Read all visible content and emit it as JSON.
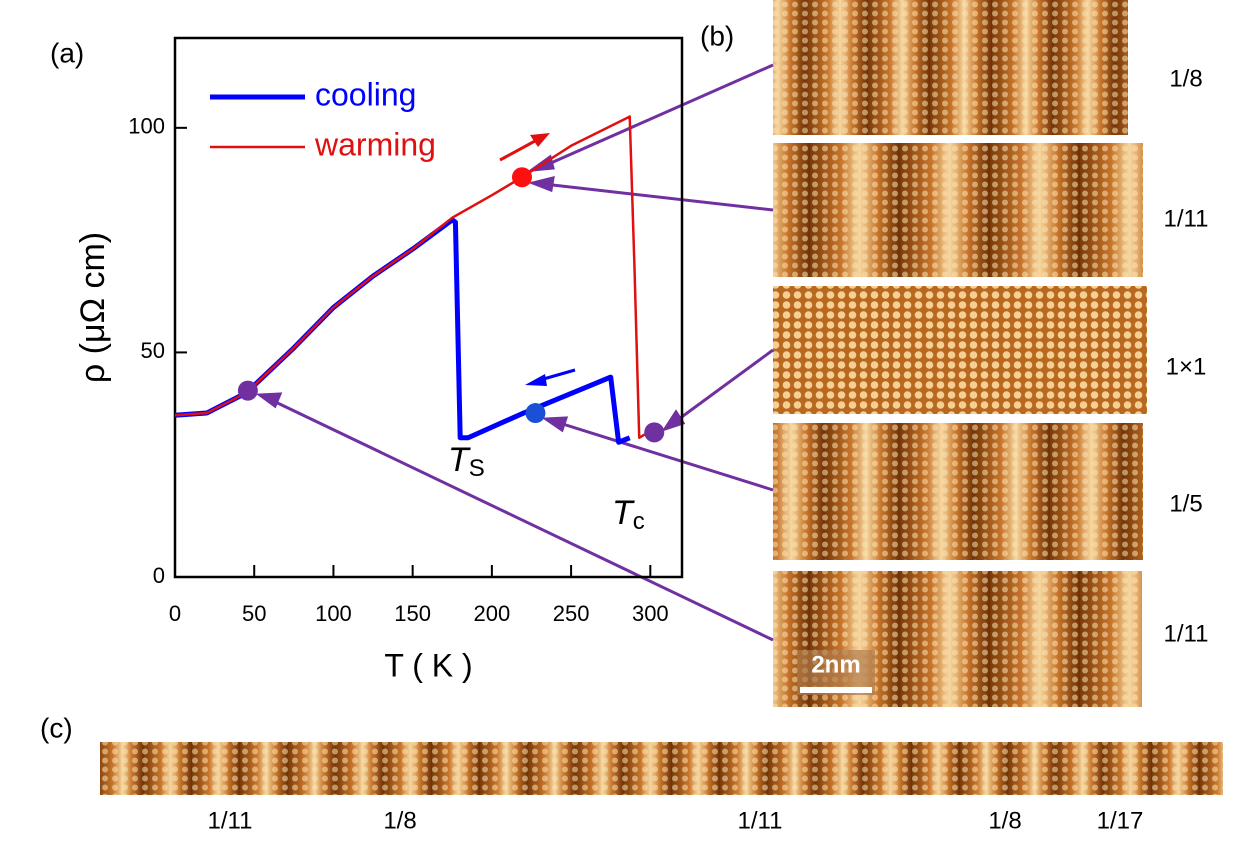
{
  "chart_data": {
    "type": "line",
    "xlabel": "T ( K )",
    "ylabel": "ρ (μΩ cm)",
    "xlim": [
      0,
      320
    ],
    "ylim": [
      0,
      120
    ],
    "xticks": [
      0,
      50,
      100,
      150,
      200,
      250,
      300
    ],
    "yticks": [
      0,
      50,
      100
    ],
    "legend": "upper left",
    "series": [
      {
        "name": "cooling",
        "color": "#0000ff",
        "x": [
          0,
          20,
          45,
          75,
          100,
          125,
          150,
          175,
          177,
          180,
          185,
          220,
          275,
          280,
          287
        ],
        "values": [
          36,
          36.5,
          41,
          51,
          60,
          67,
          73,
          79.5,
          79,
          31,
          31,
          36.5,
          44.5,
          30,
          31
        ]
      },
      {
        "name": "warming",
        "color": "#e01010",
        "x": [
          0,
          20,
          45,
          75,
          100,
          125,
          150,
          175,
          200,
          219,
          250,
          287,
          290,
          293,
          300
        ],
        "values": [
          36,
          36.5,
          41,
          51,
          60,
          67,
          73,
          80,
          85,
          89,
          96,
          102.5,
          69,
          31,
          32.5
        ]
      }
    ],
    "points": [
      {
        "x": 46,
        "y": 41.5,
        "color": "#7030a0"
      },
      {
        "x": 219,
        "y": 89,
        "color": "#ff1010"
      },
      {
        "x": 227.5,
        "y": 36.5,
        "color": "#1a4fd6"
      },
      {
        "x": 302.5,
        "y": 32.2,
        "color": "#7030a0"
      }
    ],
    "annotations": [
      {
        "symbol": "T",
        "sub": "S"
      },
      {
        "symbol": "T",
        "sub": "c"
      }
    ]
  },
  "panels": {
    "a": "(a)",
    "b": "(b)",
    "c": "(c)"
  },
  "images_b": [
    "1/8",
    "1/11",
    "1×1",
    "1/5",
    "1/11"
  ],
  "scale_bar": "2nm",
  "labels_c": [
    "1/11",
    "1/8",
    "1/11",
    "1/8",
    "1/17"
  ]
}
